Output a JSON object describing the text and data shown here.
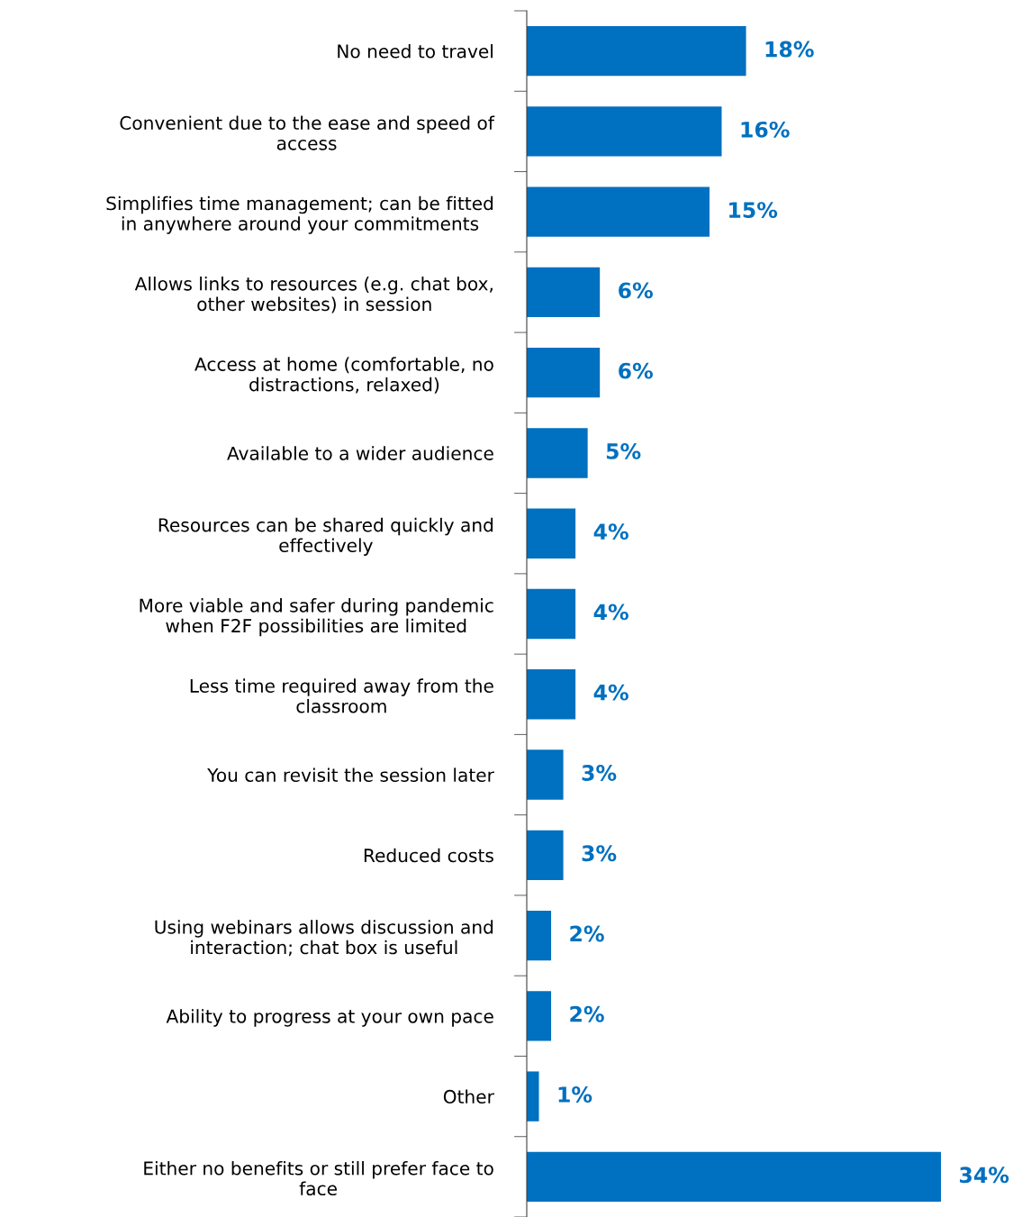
{
  "chart_data": {
    "type": "bar",
    "orientation": "horizontal",
    "color": "#0070c0",
    "data_labels": true,
    "grid": false,
    "legend": false,
    "categories": [
      "No need to travel",
      "Convenient due to the ease and speed of\naccess",
      "Simplifies time management; can be fitted\nin anywhere around your commitments",
      "Allows links to resources (e.g. chat box,\nother websites) in session",
      "Access at home (comfortable, no\ndistractions, relaxed)",
      "Available to a wider audience",
      "Resources can be shared quickly and\neffectively",
      "More viable and safer during pandemic\nwhen F2F possibilities are limited",
      "Less time required away from the\nclassroom",
      "You can revisit the session later",
      "Reduced costs",
      "Using webinars allows discussion and\ninteraction; chat box is useful",
      "Ability to progress at your own pace",
      "Other",
      "Either no benefits or still prefer face to\nface"
    ],
    "values": [
      18,
      16,
      15,
      6,
      6,
      5,
      4,
      4,
      4,
      3,
      3,
      2,
      2,
      1,
      34
    ],
    "value_labels": [
      "18%",
      "16%",
      "15%",
      "6%",
      "6%",
      "5%",
      "4%",
      "4%",
      "4%",
      "3%",
      "3%",
      "2%",
      "2%",
      "1%",
      "34%"
    ]
  }
}
